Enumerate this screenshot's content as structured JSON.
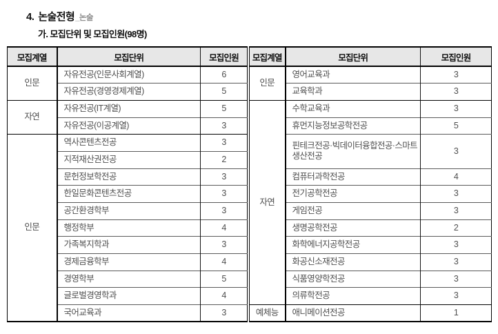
{
  "page": {
    "title_number": "4.",
    "title_main": "논술전형",
    "title_suffix": "_논술",
    "subtitle": "가. 모집단위 및 모집인원(98명)"
  },
  "colors": {
    "header_bg": "#e7e7e7",
    "border_strong": "#000000",
    "border_row": "#595959",
    "header_text": "#0f0f0f",
    "body_text": "#4f4f4f",
    "title_suffix_gray": "#8f8f8f"
  },
  "table_headers": [
    "모집계열",
    "모집단위",
    "모집인원"
  ],
  "left_table": {
    "groups": [
      {
        "category": "인문",
        "rows": [
          {
            "unit": "자유전공(인문사회계열)",
            "count": "6"
          },
          {
            "unit": "자유전공(경영경제계열)",
            "count": "5"
          }
        ]
      },
      {
        "category": "자연",
        "rows": [
          {
            "unit": "자유전공(IT계열)",
            "count": "5"
          },
          {
            "unit": "자유전공(이공계열)",
            "count": "3"
          }
        ]
      },
      {
        "category": "인문",
        "rows": [
          {
            "unit": "역사콘텐츠전공",
            "count": "3"
          },
          {
            "unit": "지적재산권전공",
            "count": "2"
          },
          {
            "unit": "문헌정보학전공",
            "count": "3"
          },
          {
            "unit": "한일문화콘텐츠전공",
            "count": "3"
          },
          {
            "unit": "공간환경학부",
            "count": "3"
          },
          {
            "unit": "행정학부",
            "count": "4"
          },
          {
            "unit": "가족복지학과",
            "count": "3"
          },
          {
            "unit": "경제금융학부",
            "count": "4"
          },
          {
            "unit": "경영학부",
            "count": "5"
          },
          {
            "unit": "글로벌경영학과",
            "count": "4"
          },
          {
            "unit": "국어교육과",
            "count": "3"
          }
        ]
      }
    ]
  },
  "right_table": {
    "groups": [
      {
        "category": "인문",
        "rows": [
          {
            "unit": "영어교육과",
            "count": "3"
          },
          {
            "unit": "교육학과",
            "count": "3"
          }
        ]
      },
      {
        "category": "자연",
        "rows": [
          {
            "unit": "수학교육과",
            "count": "3"
          },
          {
            "unit": "휴먼지능정보공학전공",
            "count": "5"
          },
          {
            "unit": "핀테크전공·빅데이터융합전공·스마트생산전공",
            "count": "3",
            "tall": true
          },
          {
            "unit": "컴퓨터과학전공",
            "count": "4"
          },
          {
            "unit": "전기공학전공",
            "count": "3"
          },
          {
            "unit": "게임전공",
            "count": "3"
          },
          {
            "unit": "생명공학전공",
            "count": "2"
          },
          {
            "unit": "화학에너지공학전공",
            "count": "3"
          },
          {
            "unit": "화공신소재전공",
            "count": "3"
          },
          {
            "unit": "식품영양학전공",
            "count": "3"
          },
          {
            "unit": "의류학전공",
            "count": "3"
          }
        ]
      },
      {
        "category": "예체능",
        "rows": [
          {
            "unit": "애니메이션전공",
            "count": "1"
          }
        ]
      }
    ]
  }
}
